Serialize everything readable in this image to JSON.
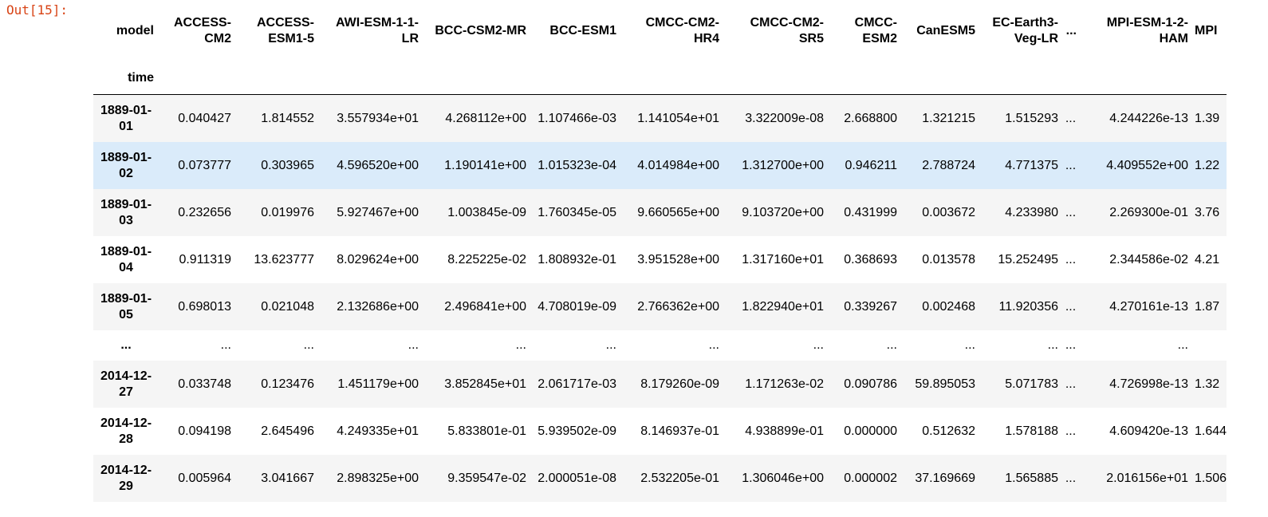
{
  "prompt": "Out[15]:",
  "index_name": "model",
  "row_index_label": "time",
  "columns": [
    "ACCESS-CM2",
    "ACCESS-ESM1-5",
    "AWI-ESM-1-1-LR",
    "BCC-CSM2-MR",
    "BCC-ESM1",
    "CMCC-CM2-HR4",
    "CMCC-CM2-SR5",
    "CMCC-ESM2",
    "CanESM5",
    "EC-Earth3-Veg-LR",
    "...",
    "MPI-ESM-1-2-HAM",
    "MPI"
  ],
  "rows": [
    {
      "time": "1889-01-01",
      "cells": [
        "0.040427",
        "1.814552",
        "3.557934e+01",
        "4.268112e+00",
        "1.107466e-03",
        "1.141054e+01",
        "3.322009e-08",
        "2.668800",
        "1.321215",
        "1.515293",
        "...",
        "4.244226e-13",
        "1.39"
      ]
    },
    {
      "time": "1889-01-02",
      "cells": [
        "0.073777",
        "0.303965",
        "4.596520e+00",
        "1.190141e+00",
        "1.015323e-04",
        "4.014984e+00",
        "1.312700e+00",
        "0.946211",
        "2.788724",
        "4.771375",
        "...",
        "4.409552e+00",
        "1.22"
      ]
    },
    {
      "time": "1889-01-03",
      "cells": [
        "0.232656",
        "0.019976",
        "5.927467e+00",
        "1.003845e-09",
        "1.760345e-05",
        "9.660565e+00",
        "9.103720e+00",
        "0.431999",
        "0.003672",
        "4.233980",
        "...",
        "2.269300e-01",
        "3.76"
      ]
    },
    {
      "time": "1889-01-04",
      "cells": [
        "0.911319",
        "13.623777",
        "8.029624e+00",
        "8.225225e-02",
        "1.808932e-01",
        "3.951528e+00",
        "1.317160e+01",
        "0.368693",
        "0.013578",
        "15.252495",
        "...",
        "2.344586e-02",
        "4.21"
      ]
    },
    {
      "time": "1889-01-05",
      "cells": [
        "0.698013",
        "0.021048",
        "2.132686e+00",
        "2.496841e+00",
        "4.708019e-09",
        "2.766362e+00",
        "1.822940e+01",
        "0.339267",
        "0.002468",
        "11.920356",
        "...",
        "4.270161e-13",
        "1.87"
      ]
    },
    {
      "time": "...",
      "cells": [
        "...",
        "...",
        "...",
        "...",
        "...",
        "...",
        "...",
        "...",
        "...",
        "...",
        "...",
        "...",
        ""
      ]
    },
    {
      "time": "2014-12-27",
      "cells": [
        "0.033748",
        "0.123476",
        "1.451179e+00",
        "3.852845e+01",
        "2.061717e-03",
        "8.179260e-09",
        "1.171263e-02",
        "0.090786",
        "59.895053",
        "5.071783",
        "...",
        "4.726998e-13",
        "1.32"
      ]
    },
    {
      "time": "2014-12-28",
      "cells": [
        "0.094198",
        "2.645496",
        "4.249335e+01",
        "5.833801e-01",
        "5.939502e-09",
        "8.146937e-01",
        "4.938899e-01",
        "0.000000",
        "0.512632",
        "1.578188",
        "...",
        "4.609420e-13",
        "1.644"
      ]
    },
    {
      "time": "2014-12-29",
      "cells": [
        "0.005964",
        "3.041667",
        "2.898325e+00",
        "9.359547e-02",
        "2.000051e-08",
        "2.532205e-01",
        "1.306046e+00",
        "0.000002",
        "37.169669",
        "1.565885",
        "...",
        "2.016156e+01",
        "1.506"
      ]
    }
  ],
  "colors": {
    "prompt": "#d84315",
    "row_odd": "#f5f5f5",
    "row_even": "#ffffff",
    "row_hover": "#daebfa"
  }
}
